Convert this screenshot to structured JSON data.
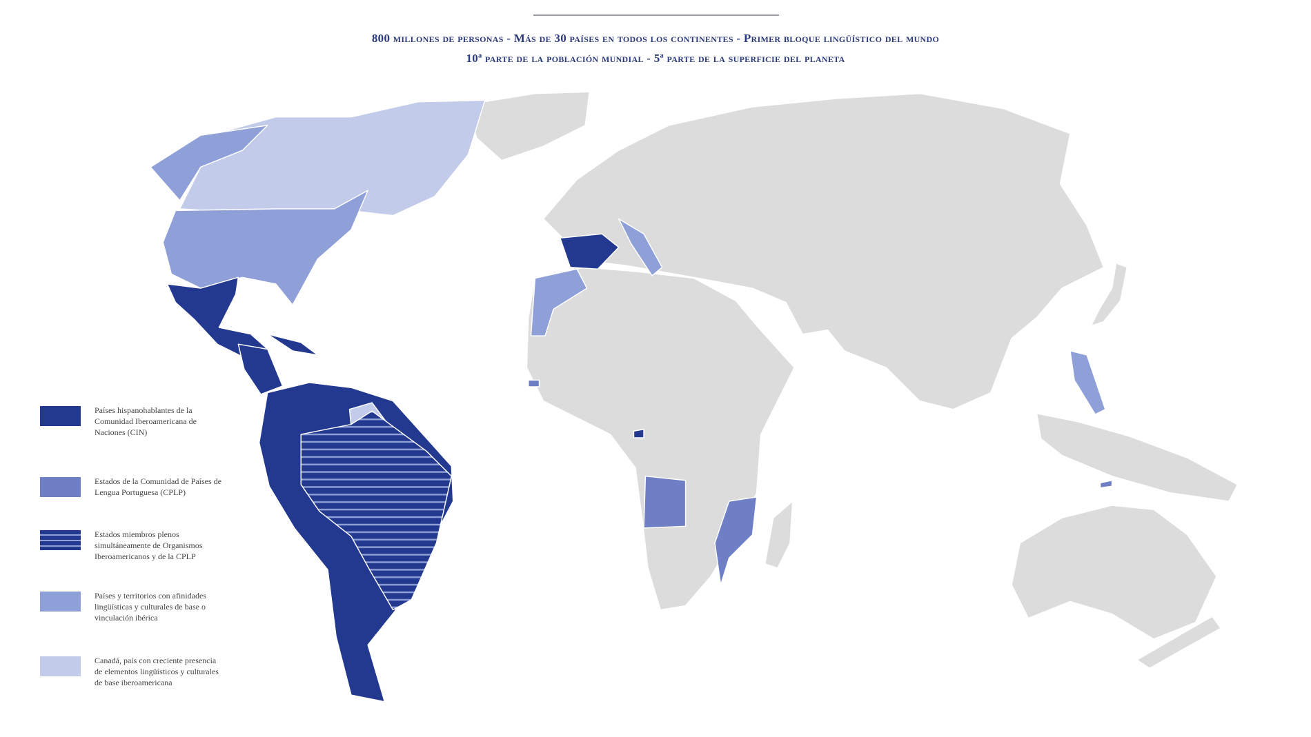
{
  "subtitle": [
    "800 millones de personas - Más de 30 países en todos los continentes - Primer bloque lingüístico del mundo",
    "10ª parte de la población mundial - 5ª parte de la superficie del planeta"
  ],
  "legend": [
    {
      "label": "Países hispanohablantes de la Comunidad Iberoamericana de Naciones (CIN)"
    },
    {
      "label": "Estados de la Comunidad de Países de Lengua Portuguesa (CPLP)"
    },
    {
      "label": "Estados miembros plenos simultáneamente de Organismos Iberoamericanos y de la CPLP"
    },
    {
      "label": "Países y territorios con afinidades lingüísticas y culturales de base o vinculación ibérica"
    },
    {
      "label": "Canadá, país con creciente presencia de elementos lingüísticos y culturales de base iberoamericana"
    }
  ]
}
